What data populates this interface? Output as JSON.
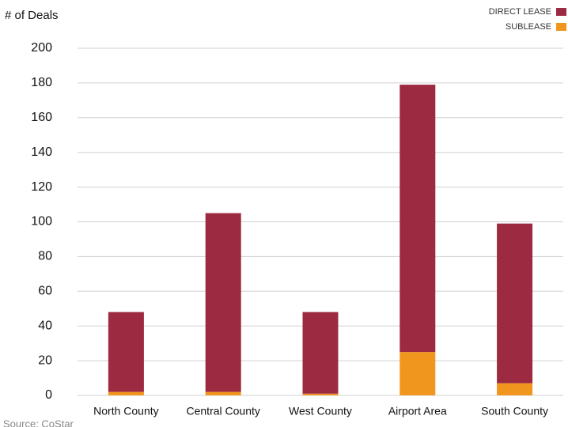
{
  "chart_data": {
    "type": "stacked_bar",
    "y_axis_label": "# of Deals",
    "source": "Source: CoStar",
    "categories": [
      "North County",
      "Central County",
      "West County",
      "Airport Area",
      "South County"
    ],
    "series": [
      {
        "name": "DIRECT LEASE",
        "color": "#9c2a40",
        "values": [
          46,
          103,
          47,
          154,
          92
        ]
      },
      {
        "name": "SUBLEASE",
        "color": "#f0961e",
        "values": [
          2,
          2,
          1,
          25,
          7
        ]
      }
    ],
    "ylim": [
      0,
      200
    ],
    "yticks": [
      0,
      20,
      40,
      60,
      80,
      100,
      120,
      140,
      160,
      180,
      200
    ],
    "grid": true,
    "legend_position": "top-right"
  }
}
